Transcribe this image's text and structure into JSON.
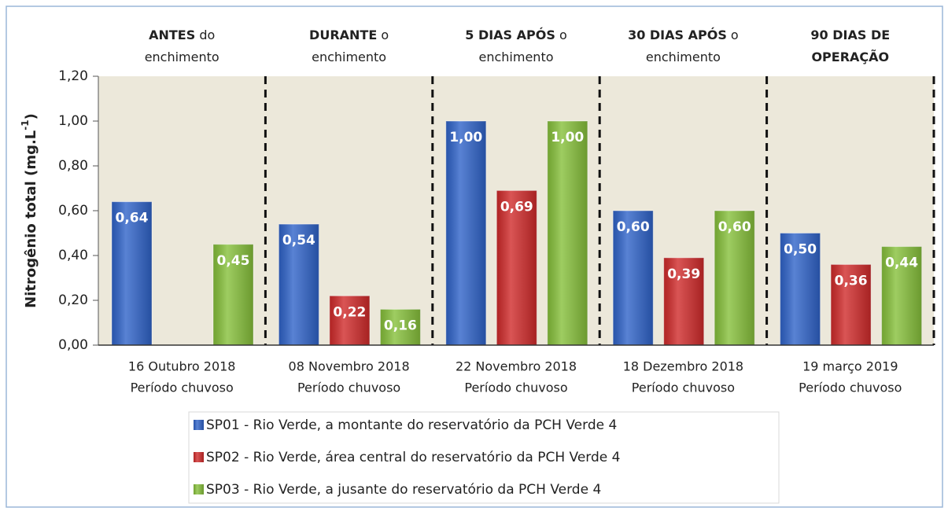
{
  "chart_data": {
    "type": "bar",
    "y_label": {
      "text": "Nitrogênio total (mg.L",
      "sup": "-1",
      "end": ")"
    },
    "annotations": [
      {
        "lines": [
          [
            {
              "text": "ANTES",
              "bold": true
            },
            {
              "text": " do",
              "bold": false
            }
          ],
          [
            {
              "text": "enchimento",
              "bold": false
            }
          ]
        ]
      },
      {
        "lines": [
          [
            {
              "text": "DURANTE",
              "bold": true
            },
            {
              "text": " o",
              "bold": false
            }
          ],
          [
            {
              "text": "enchimento",
              "bold": false
            }
          ]
        ]
      },
      {
        "lines": [
          [
            {
              "text": "5 DIAS APÓS",
              "bold": true
            },
            {
              "text": " o",
              "bold": false
            }
          ],
          [
            {
              "text": "enchimento",
              "bold": false
            }
          ]
        ]
      },
      {
        "lines": [
          [
            {
              "text": "30 DIAS APÓS",
              "bold": true
            },
            {
              "text": " o",
              "bold": false
            }
          ],
          [
            {
              "text": "enchimento",
              "bold": false
            }
          ]
        ]
      },
      {
        "lines": [
          [
            {
              "text": "90 DIAS DE",
              "bold": true
            }
          ],
          [
            {
              "text": "OPERAÇÃO",
              "bold": true
            }
          ]
        ]
      }
    ],
    "categories": [
      [
        "16 Outubro 2018",
        "Período chuvoso"
      ],
      [
        "08 Novembro 2018",
        "Período chuvoso"
      ],
      [
        "22 Novembro 2018",
        "Período chuvoso"
      ],
      [
        "18 Dezembro 2018",
        "Período chuvoso"
      ],
      [
        "19 março 2019",
        "Período chuvoso"
      ]
    ],
    "series": [
      {
        "name": "SP01 - Rio Verde, a montante do reservatório da PCH Verde 4",
        "color": "#2f63c9",
        "values": [
          0.64,
          0.54,
          1.0,
          0.6,
          0.5
        ],
        "value_labels": [
          "0,64",
          "0,54",
          "1,00",
          "0,60",
          "0,50"
        ]
      },
      {
        "name": "SP02 - Rio Verde, área central do reservatório da PCH Verde 4",
        "color": "#d02a2a",
        "values": [
          null,
          0.22,
          0.69,
          0.39,
          0.36
        ],
        "value_labels": [
          null,
          "0,22",
          "0,69",
          "0,39",
          "0,36"
        ]
      },
      {
        "name": "SP03 - Rio Verde, a jusante do reservatório da PCH Verde 4",
        "color": "#86c03a",
        "values": [
          0.45,
          0.16,
          1.0,
          0.6,
          0.44
        ],
        "value_labels": [
          "0,45",
          "0,16",
          "1,00",
          "0,60",
          "0,44"
        ]
      }
    ],
    "ylim": [
      0,
      1.2
    ],
    "yticks": [
      {
        "value": 0,
        "label": "0,00"
      },
      {
        "value": 0.2,
        "label": "0,20"
      },
      {
        "value": 0.4,
        "label": "0,40"
      },
      {
        "value": 0.6,
        "label": "0,60"
      },
      {
        "value": 0.8,
        "label": "0,80"
      },
      {
        "value": 1.0,
        "label": "1,00"
      },
      {
        "value": 1.2,
        "label": "1,20"
      }
    ],
    "grid": false
  }
}
